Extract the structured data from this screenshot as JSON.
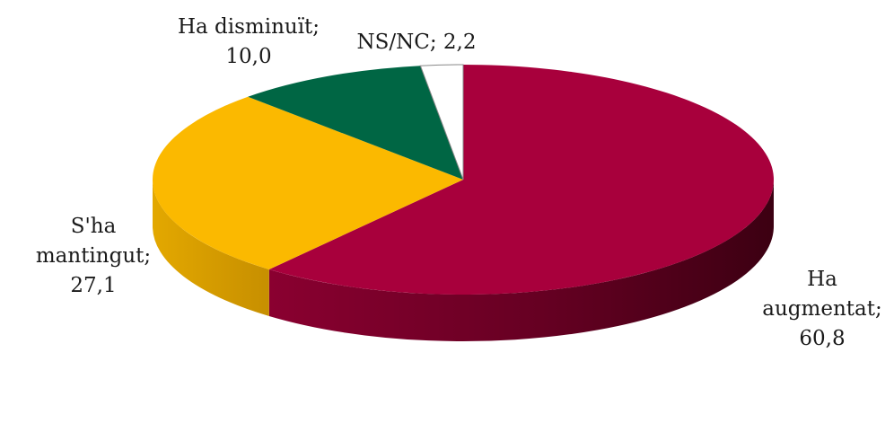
{
  "chart_data": {
    "type": "pie",
    "title": "",
    "three_d": true,
    "slices": [
      {
        "name": "Ha augmentat",
        "value": 60.8,
        "value_label": "60,8",
        "label_lines": [
          "Ha",
          "augmentat;",
          "60,8"
        ],
        "color": "#a8003c"
      },
      {
        "name": "S'ha mantingut",
        "value": 27.1,
        "value_label": "27,1",
        "label_lines": [
          "S'ha",
          "mantingut;",
          "27,1"
        ],
        "color": "#fbb900"
      },
      {
        "name": "Ha disminuït",
        "value": 10.0,
        "value_label": "10,0",
        "label_lines": [
          "Ha disminuït;",
          "10,0"
        ],
        "color": "#006644"
      },
      {
        "name": "NS/NC",
        "value": 2.2,
        "value_label": "2,2",
        "label_lines": [
          "NS/NC; 2,2"
        ],
        "color": "#ffffff"
      }
    ]
  }
}
